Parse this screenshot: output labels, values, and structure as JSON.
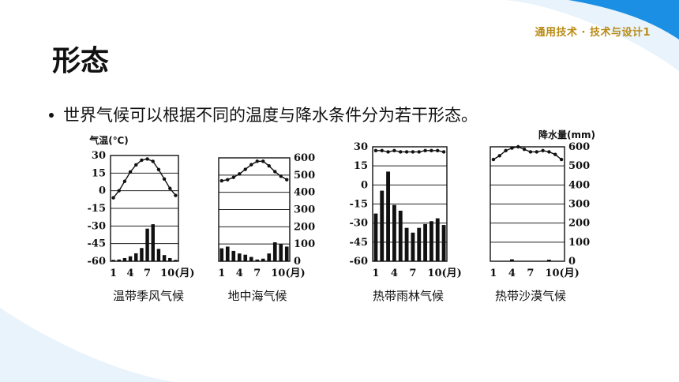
{
  "course_tag": "通用技术 · 技术与设计1",
  "title": "形态",
  "bullet": "世界气候可以根据不同的温度与降水条件分为若干形态。",
  "axis": {
    "temp_label": "气温(℃)",
    "precip_label": "降水量(mm)",
    "temp_ticks": [
      "30",
      "15",
      "0",
      "-15",
      "-30",
      "-45",
      "-60"
    ],
    "precip_ticks": [
      "600",
      "500",
      "400",
      "300",
      "200",
      "100",
      "0"
    ],
    "month_ticks": [
      "1",
      "4",
      "7",
      "10(月)"
    ]
  },
  "chart_data": [
    {
      "type": "bar",
      "title": "温带季风气候",
      "categories": [
        "1",
        "2",
        "3",
        "4",
        "5",
        "6",
        "7",
        "8",
        "9",
        "10",
        "11",
        "12"
      ],
      "temperature": [
        -6,
        0,
        8,
        16,
        22,
        26,
        27,
        25,
        18,
        10,
        2,
        -4
      ],
      "precipitation": [
        8,
        10,
        18,
        28,
        45,
        75,
        185,
        210,
        70,
        35,
        18,
        8
      ],
      "ylim_temp": [
        -60,
        30
      ],
      "ylim_precip": [
        0,
        600
      ]
    },
    {
      "type": "bar",
      "title": "地中海气候",
      "categories": [
        "1",
        "2",
        "3",
        "4",
        "5",
        "6",
        "7",
        "8",
        "9",
        "10",
        "11",
        "12"
      ],
      "temperature": [
        10,
        11,
        13,
        16,
        20,
        24,
        27,
        27,
        23,
        18,
        14,
        11
      ],
      "precipitation": [
        75,
        85,
        60,
        45,
        38,
        25,
        10,
        15,
        45,
        110,
        100,
        85
      ],
      "ylim_temp": [
        -60,
        30
      ],
      "ylim_precip": [
        0,
        600
      ]
    },
    {
      "type": "bar",
      "title": "热带雨林气候",
      "categories": [
        "1",
        "2",
        "3",
        "4",
        "5",
        "6",
        "7",
        "8",
        "9",
        "10",
        "11",
        "12"
      ],
      "temperature": [
        27,
        27,
        26,
        27,
        26,
        26,
        26,
        26,
        27,
        27,
        27,
        26
      ],
      "precipitation": [
        250,
        370,
        470,
        295,
        265,
        175,
        150,
        175,
        195,
        210,
        225,
        190
      ],
      "ylim_temp": [
        -60,
        30
      ],
      "ylim_precip": [
        0,
        600
      ]
    },
    {
      "type": "bar",
      "title": "热带沙漠气候",
      "categories": [
        "1",
        "2",
        "3",
        "4",
        "5",
        "6",
        "7",
        "8",
        "9",
        "10",
        "11",
        "12"
      ],
      "temperature": [
        20,
        23,
        27,
        29,
        30,
        28,
        26,
        26,
        27,
        26,
        24,
        20
      ],
      "precipitation": [
        0,
        0,
        0,
        10,
        0,
        0,
        0,
        0,
        0,
        8,
        0,
        0
      ],
      "ylim_temp": [
        -60,
        30
      ],
      "ylim_precip": [
        0,
        600
      ]
    }
  ]
}
